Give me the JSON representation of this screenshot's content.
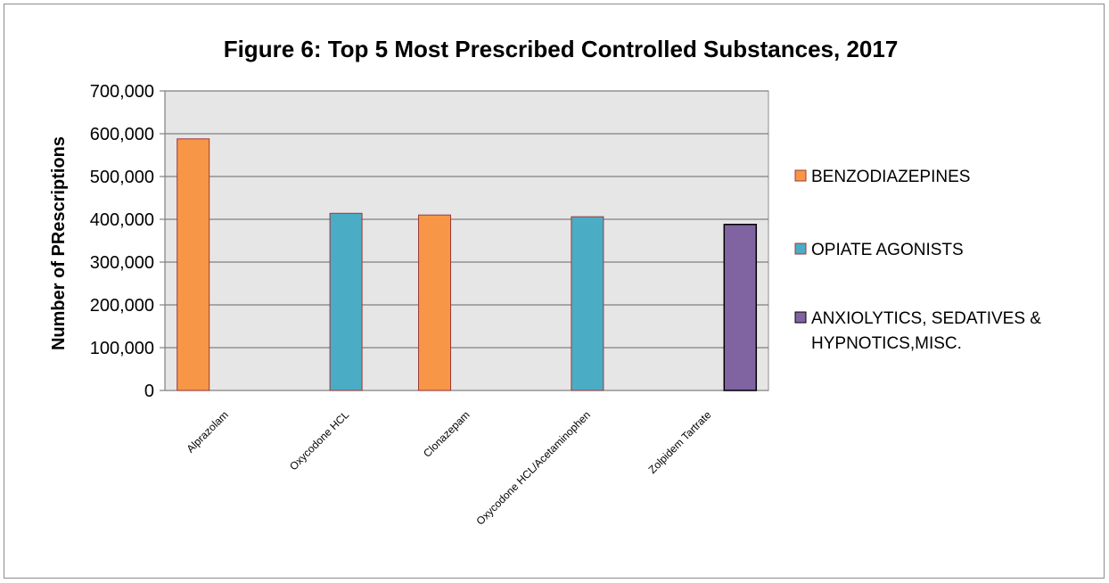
{
  "chart_data": {
    "type": "bar",
    "title": "Figure 6: Top 5 Most Prescribed Controlled Substances, 2017",
    "xlabel": "",
    "ylabel": "Number of PRescriptions",
    "ylim": [
      0,
      700000
    ],
    "yticks": [
      "0",
      "100,000",
      "200,000",
      "300,000",
      "400,000",
      "500,000",
      "600,000",
      "700,000"
    ],
    "categories": [
      "Alprazolam",
      "Oxycodone HCL",
      "Clonazepam",
      "Oxycodone HCL/Acetaminophen",
      "Zolpidem Tartrate"
    ],
    "series": [
      {
        "name": "BENZODIAZEPINES",
        "color": "#f79646",
        "values": [
          588000,
          null,
          410000,
          null,
          null
        ]
      },
      {
        "name": "OPIATE AGONISTS",
        "color": "#4bacc6",
        "values": [
          null,
          414000,
          null,
          406000,
          null
        ]
      },
      {
        "name": "ANXIOLYTICS, SEDATIVES & HYPNOTICS,MISC.",
        "legend_lines": [
          "ANXIOLYTICS, SEDATIVES &",
          "HYPNOTICS,MISC."
        ],
        "color": "#8064a2",
        "values": [
          null,
          null,
          null,
          null,
          388000
        ]
      }
    ],
    "grid": true,
    "plot_background": "#e6e6e6",
    "legend_position": "right"
  }
}
